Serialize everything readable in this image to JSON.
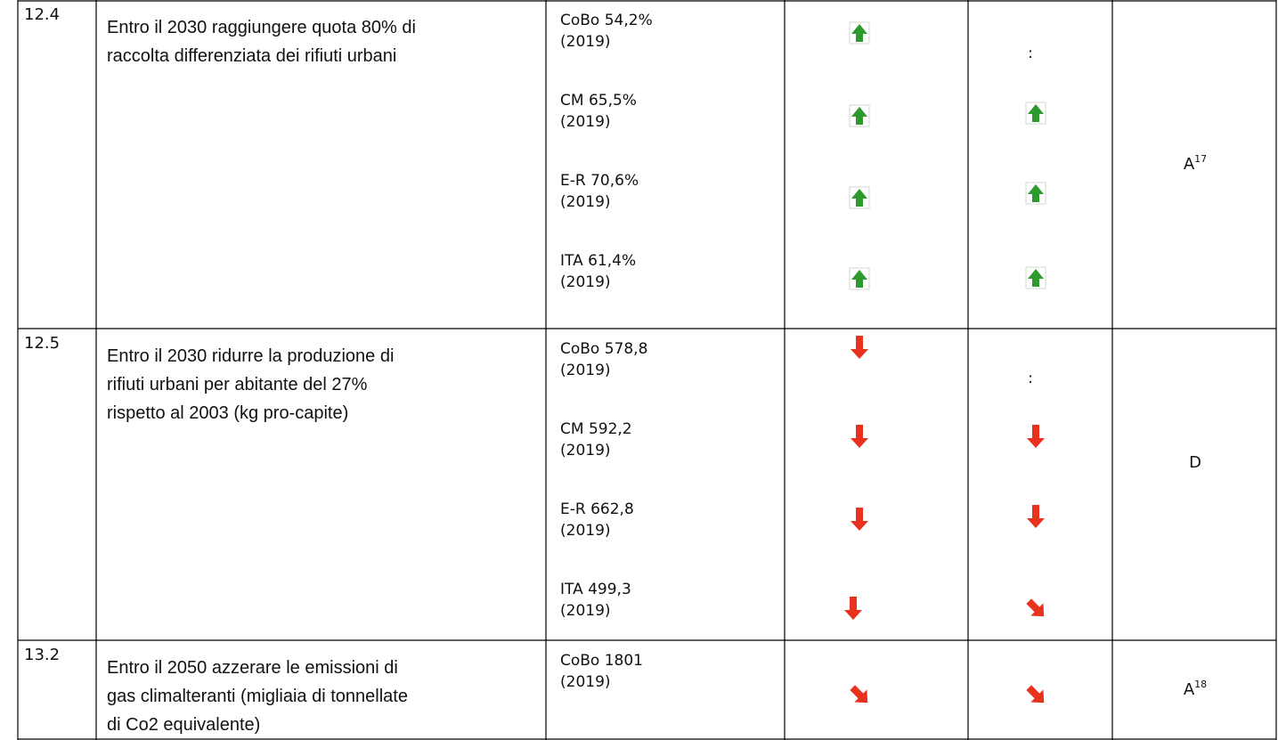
{
  "rows": [
    {
      "id": "12.4",
      "goal": [
        "Entro il 2030 raggiungere quota 80% di",
        "raccolta differenziata dei rifiuti urbani"
      ],
      "indicators": [
        [
          "CoBo 54,2%",
          "(2019)"
        ],
        [
          "CM 65,5%",
          "(2019)"
        ],
        [
          "E-R 70,6%",
          "(2019)"
        ],
        [
          "ITA 61,4%",
          "(2019)"
        ]
      ],
      "long_note": ":",
      "assessment": {
        "text": "A",
        "sup": "17"
      }
    },
    {
      "id": "12.5",
      "goal": [
        "Entro il 2030 ridurre la produzione di",
        "rifiuti urbani per abitante del 27%",
        "rispetto al 2003 (kg pro-capite)"
      ],
      "indicators": [
        [
          "CoBo 578,8",
          "(2019)"
        ],
        [
          "CM 592,2",
          "(2019)"
        ],
        [
          "E-R 662,8",
          "(2019)"
        ],
        [
          "ITA 499,3",
          "(2019)"
        ]
      ],
      "long_note": ":",
      "assessment": {
        "text": "D"
      }
    },
    {
      "id": "13.2",
      "goal": [
        "Entro il 2050 azzerare le emissioni di",
        "gas climalteranti (migliaia di tonnellate",
        "di Co2 equivalente)"
      ],
      "indicators": [
        [
          "CoBo 1801",
          "(2019)"
        ]
      ],
      "assessment": {
        "text": "A",
        "sup": "18"
      }
    }
  ]
}
